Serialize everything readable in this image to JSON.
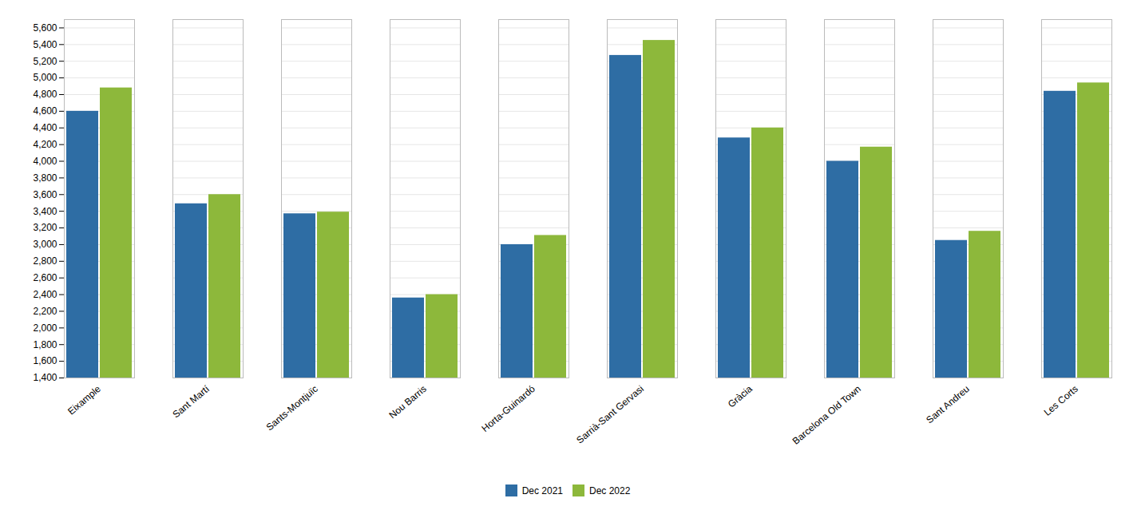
{
  "chart_data": {
    "type": "bar",
    "categories": [
      "Eixample",
      "Sant Martí",
      "Sants-Montjuïc",
      "Nou Barris",
      "Horta-Guinardó",
      "Sarrià-Sant Gervasi",
      "Gràcia",
      "Barcelona Old Town",
      "Sant Andreu",
      "Les Corts"
    ],
    "series": [
      {
        "name": "Dec 2021",
        "color": "#2E6DA4",
        "values": [
          4600,
          3490,
          3370,
          2360,
          3000,
          5270,
          4280,
          4000,
          3050,
          4840
        ]
      },
      {
        "name": "Dec 2022",
        "color": "#8DB83B",
        "values": [
          4880,
          3600,
          3390,
          2400,
          3110,
          5450,
          4400,
          4170,
          3160,
          4940
        ]
      }
    ],
    "ylim": [
      1400,
      5700
    ],
    "yticks": [
      {
        "value": 1400,
        "label": "1,400"
      },
      {
        "value": 1600,
        "label": "1,600"
      },
      {
        "value": 1800,
        "label": "1,800"
      },
      {
        "value": 2000,
        "label": "2,000"
      },
      {
        "value": 2200,
        "label": "2,200"
      },
      {
        "value": 2400,
        "label": "2,400"
      },
      {
        "value": 2600,
        "label": "2,600"
      },
      {
        "value": 2800,
        "label": "2,800"
      },
      {
        "value": 3000,
        "label": "3,000"
      },
      {
        "value": 3200,
        "label": "3,200"
      },
      {
        "value": 3400,
        "label": "3,400"
      },
      {
        "value": 3600,
        "label": "3,600"
      },
      {
        "value": 3800,
        "label": "3,800"
      },
      {
        "value": 4000,
        "label": "4,000"
      },
      {
        "value": 4200,
        "label": "4,200"
      },
      {
        "value": 4400,
        "label": "4,400"
      },
      {
        "value": 4600,
        "label": "4,600"
      },
      {
        "value": 4800,
        "label": "4,800"
      },
      {
        "value": 5000,
        "label": "5,000"
      },
      {
        "value": 5200,
        "label": "5,200"
      },
      {
        "value": 5400,
        "label": "5,400"
      },
      {
        "value": 5600,
        "label": "5,600"
      }
    ],
    "grid": true,
    "legend": "bottom"
  }
}
